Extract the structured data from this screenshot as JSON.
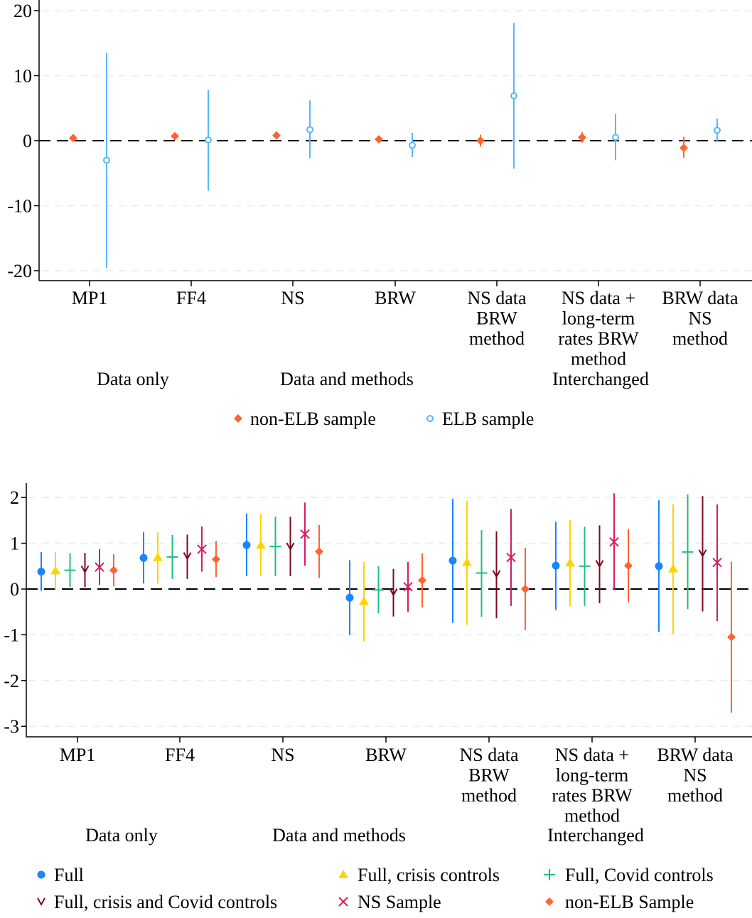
{
  "chart_data": [
    {
      "type": "scatter",
      "subtype": "coefficient plot with confidence intervals",
      "title": "",
      "xlabel": "",
      "ylabel": "",
      "ylim": [
        -21,
        22
      ],
      "yticks": [
        -20,
        -10,
        0,
        10,
        20
      ],
      "ytick_labels": [
        "-20",
        "-10",
        "0",
        "10",
        "20"
      ],
      "grid": "horizontal dashed",
      "reference_line": 0,
      "categories": [
        [
          "MP1"
        ],
        [
          "FF4"
        ],
        [
          "NS"
        ],
        [
          "BRW"
        ],
        [
          "NS data",
          "BRW",
          "method"
        ],
        [
          "NS data +",
          "long-term",
          "rates BRW",
          "method"
        ],
        [
          "BRW data",
          "NS",
          "method"
        ]
      ],
      "groups": [
        "Data only",
        "Data and methods",
        "Interchanged"
      ],
      "legend_position": "bottom",
      "series": [
        {
          "name": "non-ELB sample",
          "marker": "diamond",
          "color": "#ff6430",
          "values": [
            0.4,
            0.7,
            0.8,
            0.2,
            0.0,
            0.5,
            -1.1
          ],
          "lower": [
            0.1,
            0.4,
            0.5,
            -0.1,
            -0.9,
            -0.3,
            -2.6
          ],
          "upper": [
            0.7,
            1.0,
            1.1,
            0.5,
            0.9,
            1.3,
            0.6
          ]
        },
        {
          "name": "ELB sample",
          "marker": "hollow-circle",
          "color": "#55b8ff",
          "values": [
            -3.0,
            0.1,
            1.7,
            -0.7,
            6.9,
            0.5,
            1.6
          ],
          "lower": [
            -19.6,
            -7.7,
            -2.7,
            -2.5,
            -4.3,
            -3.0,
            -0.2
          ],
          "upper": [
            13.5,
            7.8,
            6.2,
            1.2,
            18.1,
            4.1,
            3.4
          ]
        }
      ]
    },
    {
      "type": "scatter",
      "subtype": "coefficient plot with confidence intervals",
      "title": "",
      "xlabel": "",
      "ylabel": "",
      "ylim": [
        -3.2,
        2.3
      ],
      "yticks": [
        -3,
        -2,
        -1,
        0,
        1,
        2
      ],
      "ytick_labels": [
        "-3",
        "-2",
        "-1",
        "0",
        "1",
        "2"
      ],
      "grid": "horizontal dashed",
      "reference_line": 0,
      "categories": [
        [
          "MP1"
        ],
        [
          "FF4"
        ],
        [
          "NS"
        ],
        [
          "BRW"
        ],
        [
          "NS data",
          "BRW",
          "method"
        ],
        [
          "NS data +",
          "long-term",
          "rates BRW",
          "method"
        ],
        [
          "BRW data",
          "NS",
          "method"
        ]
      ],
      "groups": [
        "Data only",
        "Data and methods",
        "Interchanged"
      ],
      "legend_position": "bottom",
      "series": [
        {
          "name": "Full",
          "marker": "circle",
          "color": "#1a85ff",
          "values": [
            0.38,
            0.68,
            0.96,
            -0.19,
            0.62,
            0.51,
            0.5
          ],
          "lower": [
            -0.04,
            0.12,
            0.28,
            -1.01,
            -0.74,
            -0.46,
            -0.94
          ],
          "upper": [
            0.81,
            1.24,
            1.65,
            0.63,
            1.97,
            1.47,
            1.94
          ]
        },
        {
          "name": "Full, crisis controls",
          "marker": "triangle",
          "color": "#ffd400",
          "values": [
            0.4,
            0.69,
            0.96,
            -0.27,
            0.58,
            0.57,
            0.44
          ],
          "lower": [
            -0.03,
            0.12,
            0.28,
            -1.14,
            -0.78,
            -0.38,
            -0.98
          ],
          "upper": [
            0.81,
            1.24,
            1.65,
            0.59,
            1.93,
            1.51,
            1.85
          ]
        },
        {
          "name": "Full, Covid controls",
          "marker": "plus",
          "color": "#1dbf7e",
          "values": [
            0.41,
            0.7,
            0.93,
            -0.02,
            0.35,
            0.5,
            0.81
          ],
          "lower": [
            0.04,
            0.22,
            0.28,
            -0.53,
            -0.61,
            -0.37,
            -0.44
          ],
          "upper": [
            0.78,
            1.18,
            1.58,
            0.5,
            1.29,
            1.36,
            2.07
          ]
        },
        {
          "name": "Full, crisis and Covid controls",
          "marker": "chevron-down",
          "color": "#7a0a1e",
          "values": [
            0.43,
            0.72,
            0.93,
            -0.07,
            0.33,
            0.55,
            0.78
          ],
          "lower": [
            0.04,
            0.22,
            0.28,
            -0.6,
            -0.64,
            -0.31,
            -0.49
          ],
          "upper": [
            0.79,
            1.19,
            1.58,
            0.44,
            1.26,
            1.39,
            2.03
          ]
        },
        {
          "name": "NS Sample",
          "marker": "x",
          "color": "#d81b60",
          "values": [
            0.48,
            0.87,
            1.2,
            0.05,
            0.69,
            1.03,
            0.58
          ],
          "lower": [
            0.09,
            0.38,
            0.51,
            -0.5,
            -0.37,
            -0.02,
            -0.7
          ],
          "upper": [
            0.87,
            1.37,
            1.89,
            0.59,
            1.75,
            2.09,
            1.85
          ]
        },
        {
          "name": "non-ELB Sample",
          "marker": "diamond",
          "color": "#ff6430",
          "values": [
            0.41,
            0.65,
            0.82,
            0.19,
            0.0,
            0.51,
            -1.05
          ],
          "lower": [
            0.06,
            0.26,
            0.24,
            -0.4,
            -0.9,
            -0.29,
            -2.7
          ],
          "upper": [
            0.76,
            1.05,
            1.4,
            0.78,
            0.9,
            1.31,
            0.6
          ]
        }
      ]
    }
  ]
}
